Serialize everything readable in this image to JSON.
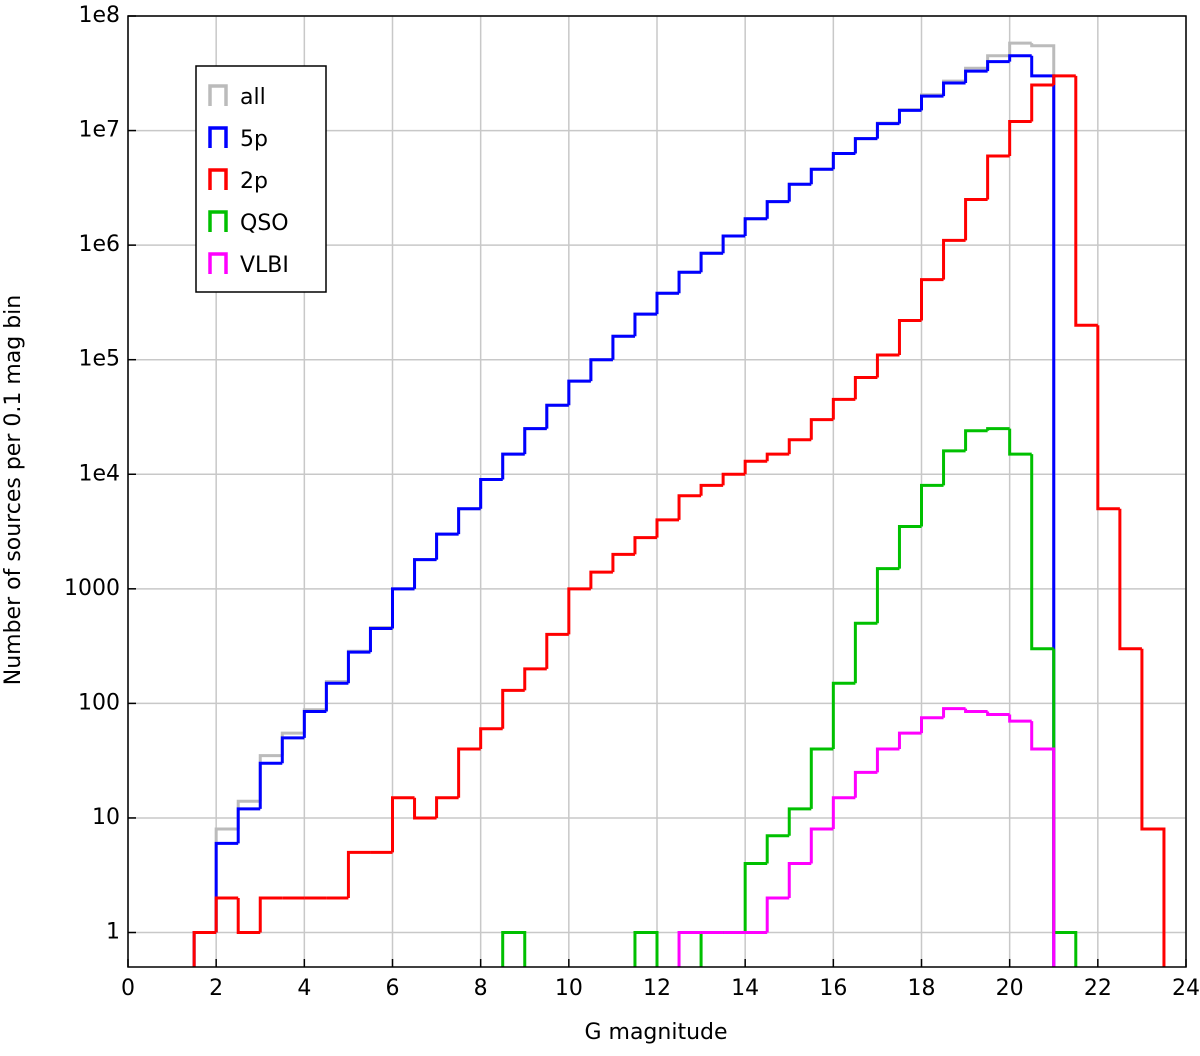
{
  "chart_data": {
    "type": "histogram",
    "xlabel": "G magnitude",
    "ylabel": "Number of sources per 0.1 mag bin",
    "log_y": true,
    "grid": true,
    "legend": "upper left",
    "xlim": [
      0,
      24
    ],
    "ylim": [
      0.5,
      100000000
    ],
    "xticks": [
      0,
      2,
      4,
      6,
      8,
      10,
      12,
      14,
      16,
      18,
      20,
      22,
      24
    ],
    "yticks": [
      1,
      10,
      100,
      1000,
      {
        "value": 10000,
        "label": "1e4"
      },
      {
        "value": 100000,
        "label": "1e5"
      },
      {
        "value": 1000000,
        "label": "1e6"
      },
      {
        "value": 10000000,
        "label": "1e7"
      },
      {
        "value": 100000000,
        "label": "1e8"
      }
    ],
    "bins": [
      1.5,
      2,
      2.5,
      3,
      3.5,
      4,
      4.5,
      5,
      5.5,
      6,
      6.5,
      7,
      7.5,
      8,
      8.5,
      9,
      9.5,
      10,
      10.5,
      11,
      11.5,
      12,
      12.5,
      13,
      13.5,
      14,
      14.5,
      15,
      15.5,
      16,
      16.5,
      17,
      17.5,
      18,
      18.5,
      19,
      19.5,
      20,
      20.5,
      21,
      21.5,
      22,
      22.5,
      23,
      23.5,
      24
    ],
    "series": [
      {
        "name": "all",
        "color": "#bbbbbb",
        "values": [
          1,
          8,
          14,
          35,
          55,
          88,
          155,
          285,
          460,
          1000,
          1800,
          3000,
          5000,
          9000,
          15000,
          25000,
          40000,
          65000,
          100000,
          160000,
          250000,
          380000,
          580000,
          850000,
          1200000,
          1700000,
          2400000,
          3400000,
          4600000,
          6300000,
          8500000,
          11600000,
          15200000,
          20500000,
          27000000,
          35000000,
          45000000,
          58000000,
          55000000,
          null,
          null,
          null,
          null,
          null,
          null
        ]
      },
      {
        "name": "5p",
        "color": "#0000ff",
        "values": [
          1,
          6,
          12,
          30,
          50,
          85,
          150,
          280,
          450,
          1000,
          1800,
          3000,
          5000,
          9000,
          15000,
          25000,
          40000,
          65000,
          100000,
          160000,
          250000,
          380000,
          580000,
          850000,
          1200000,
          1700000,
          2400000,
          3400000,
          4600000,
          6300000,
          8500000,
          11500000,
          15000000,
          20000000,
          26000000,
          33000000,
          40000000,
          45000000,
          30000000,
          null,
          null,
          null,
          null,
          null,
          null
        ]
      },
      {
        "name": "2p",
        "color": "#ff0000",
        "values": [
          1,
          2,
          1,
          2,
          2,
          2,
          2,
          5,
          5,
          15,
          10,
          15,
          40,
          60,
          130,
          200,
          400,
          1000,
          1400,
          2000,
          2800,
          4000,
          6500,
          8000,
          10000,
          13000,
          15000,
          20000,
          30000,
          45000,
          70000,
          110000,
          220000,
          500000,
          1100000,
          2500000,
          6000000,
          12000000,
          25000000,
          30000000,
          200000,
          5000,
          300,
          8,
          null
        ]
      },
      {
        "name": "QSO",
        "color": "#00c000",
        "values": [
          null,
          null,
          null,
          null,
          null,
          null,
          null,
          null,
          null,
          null,
          null,
          null,
          null,
          null,
          1,
          null,
          null,
          null,
          null,
          null,
          1,
          null,
          null,
          1,
          1,
          4,
          7,
          12,
          40,
          150,
          500,
          1500,
          3500,
          8000,
          16000,
          24000,
          25000,
          15000,
          300,
          1,
          null,
          null,
          null,
          null,
          null
        ]
      },
      {
        "name": "VLBI",
        "color": "#ff00ff",
        "values": [
          null,
          null,
          null,
          null,
          null,
          null,
          null,
          null,
          null,
          null,
          null,
          null,
          null,
          null,
          null,
          null,
          null,
          null,
          null,
          null,
          null,
          null,
          1,
          1,
          1,
          1,
          2,
          4,
          8,
          15,
          25,
          40,
          55,
          75,
          90,
          85,
          80,
          70,
          40,
          null,
          null,
          null,
          null,
          null,
          null
        ]
      }
    ]
  }
}
